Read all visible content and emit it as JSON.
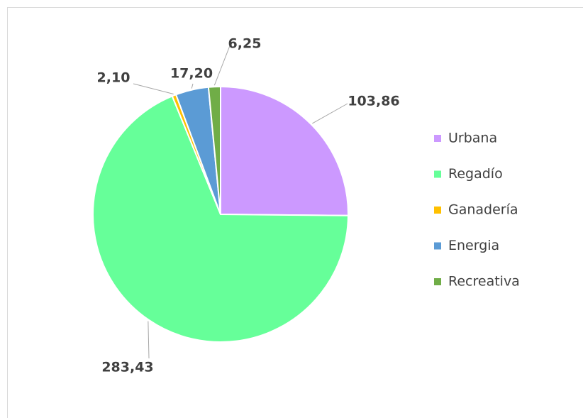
{
  "chart_data": {
    "type": "pie",
    "categories": [
      "Urbana",
      "Regadío",
      "Ganadería",
      "Energia",
      "Recreativa"
    ],
    "values": [
      103.86,
      283.43,
      2.1,
      17.2,
      6.25
    ],
    "value_labels": [
      "103,86",
      "283,43",
      "2,10",
      "17,20",
      "6,25"
    ],
    "colors": [
      "#cc99ff",
      "#66ff99",
      "#ffc000",
      "#5b9bd5",
      "#70ad47"
    ],
    "legend": "right"
  }
}
